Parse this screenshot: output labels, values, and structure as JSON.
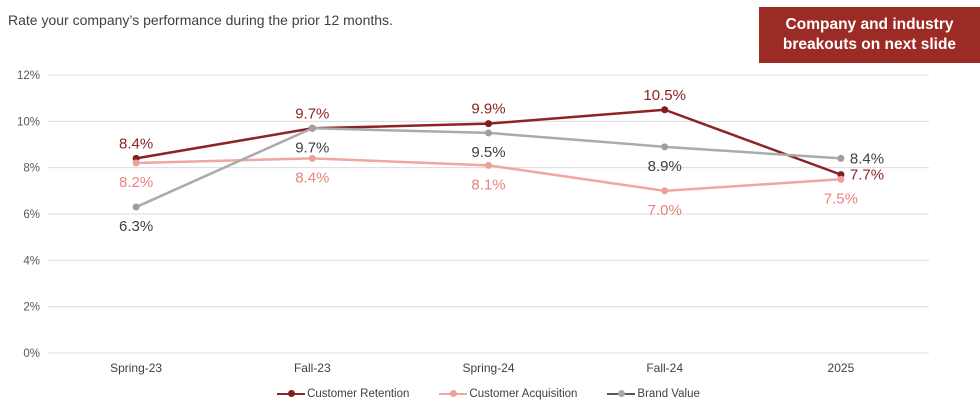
{
  "title": "Rate your company’s performance during the prior 12 months.",
  "badge": {
    "lines": [
      "Company and industry",
      "breakouts on next slide"
    ],
    "bg_color": "#9C2B25",
    "text_color": "#FFFFFF"
  },
  "chart_data": {
    "type": "line",
    "title": "Rate your company’s performance during the prior 12 months.",
    "categories": [
      "Spring-23",
      "Fall-23",
      "Spring-24",
      "Fall-24",
      "2025"
    ],
    "series": [
      {
        "name": "Customer Retention",
        "values": [
          8.4,
          9.7,
          9.9,
          10.5,
          7.7
        ],
        "labels": [
          "8.4%",
          "9.7%",
          "9.9%",
          "10.5%",
          "7.7%"
        ],
        "label_positions": [
          "above",
          "above",
          "above",
          "above",
          "right"
        ],
        "line_color": "#8B2423",
        "marker_color": "#7E1F1E",
        "label_color": "#8B2423",
        "legend_line_color": "#8B2423",
        "legend_dot_color": "#7E1F1E"
      },
      {
        "name": "Customer Acquisition",
        "values": [
          8.2,
          8.4,
          8.1,
          7.0,
          7.5
        ],
        "labels": [
          "8.2%",
          "8.4%",
          "8.1%",
          "7.0%",
          "7.5%"
        ],
        "label_positions": [
          "below",
          "below",
          "below",
          "below",
          "below"
        ],
        "line_color": "#EFA7A1",
        "marker_color": "#ECA09A",
        "label_color": "#E8837C",
        "legend_line_color": "#EFA7A1",
        "legend_dot_color": "#ECA09A"
      },
      {
        "name": "Brand Value",
        "values": [
          6.3,
          9.7,
          9.5,
          8.9,
          8.4
        ],
        "labels": [
          "6.3%",
          "9.7%",
          "9.5%",
          "8.9%",
          "8.4%"
        ],
        "label_positions": [
          "below",
          "below",
          "below",
          "below",
          "right"
        ],
        "line_color": "#ABABAB",
        "marker_color": "#9E9E9E",
        "label_color": "#404040",
        "legend_line_color": "#595959",
        "legend_dot_color": "#ABABAB"
      }
    ],
    "ylim": [
      0,
      12
    ],
    "y_tick_step": 2,
    "y_tick_labels": [
      "0%",
      "2%",
      "4%",
      "6%",
      "8%",
      "10%",
      "12%"
    ],
    "grid": true,
    "gridline_color": "#DCDCDC",
    "tick_label_color": "#595959",
    "axis_label_color": "#404040",
    "legend_position": "bottom"
  }
}
